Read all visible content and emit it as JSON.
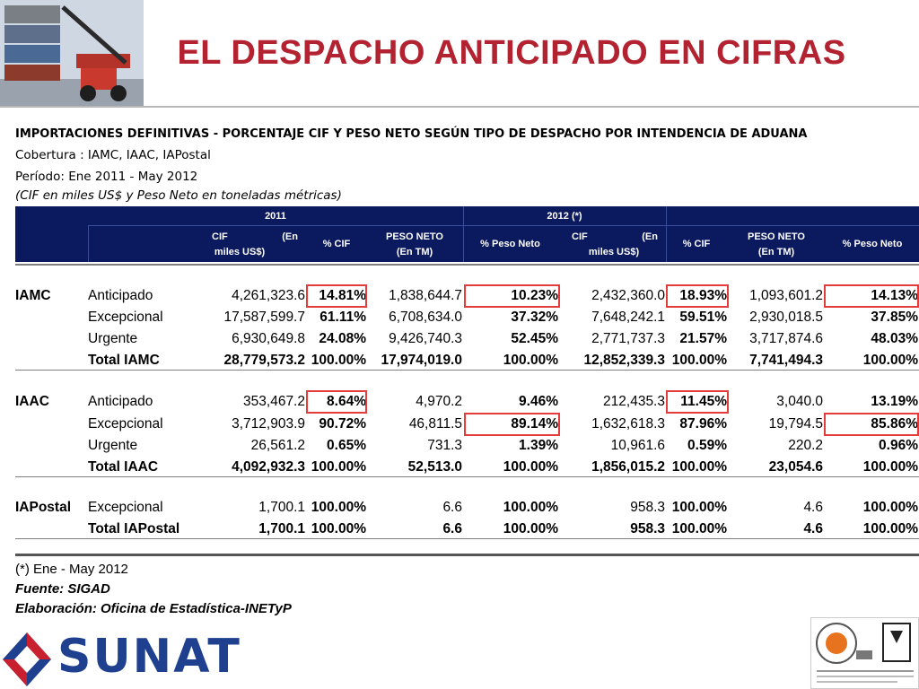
{
  "title": "EL DESPACHO ANTICIPADO EN CIFRAS",
  "intro": {
    "heading": "IMPORTACIONES DEFINITIVAS - PORCENTAJE CIF Y PESO NETO SEGÚN TIPO DE DESPACHO POR INTENDENCIA DE ADUANA",
    "coverage": "Cobertura : IAMC, IAAC, IAPostal",
    "period": "Período: Ene 2011 - May 2012",
    "units": "(CIF en miles US$ y Peso Neto en toneladas métricas)"
  },
  "table": {
    "year_2011": "2011",
    "year_2012": "2012 (*)",
    "columns": [
      "CIF (En miles US$)",
      "% CIF",
      "PESO NETO (En TM)",
      "% Peso Neto",
      "CIF (En miles US$)",
      "% CIF",
      "PESO NETO (En TM)",
      "% Peso Neto"
    ],
    "col_cif_a": "CIF",
    "col_cif_b": "(En",
    "col_cif_c": "miles US$)",
    "col_pct_cif": "% CIF",
    "col_peso_a": "PESO NETO",
    "col_peso_b": "(En TM)",
    "col_pct_peso": "% Peso Neto",
    "groups": [
      {
        "name": "IAMC",
        "rows": [
          {
            "tipo": "Anticipado",
            "v": [
              "4,261,323.6",
              "14.81%",
              "1,838,644.7",
              "10.23%",
              "2,432,360.0",
              "18.93%",
              "1,093,601.2",
              "14.13%"
            ]
          },
          {
            "tipo": "Excepcional",
            "v": [
              "17,587,599.7",
              "61.11%",
              "6,708,634.0",
              "37.32%",
              "7,648,242.1",
              "59.51%",
              "2,930,018.5",
              "37.85%"
            ]
          },
          {
            "tipo": "Urgente",
            "v": [
              "6,930,649.8",
              "24.08%",
              "9,426,740.3",
              "52.45%",
              "2,771,737.3",
              "21.57%",
              "3,717,874.6",
              "48.03%"
            ]
          },
          {
            "tipo": "Total IAMC",
            "v": [
              "28,779,573.2",
              "100.00%",
              "17,974,019.0",
              "100.00%",
              "12,852,339.3",
              "100.00%",
              "7,741,494.3",
              "100.00%"
            ]
          }
        ]
      },
      {
        "name": "IAAC",
        "rows": [
          {
            "tipo": "Anticipado",
            "v": [
              "353,467.2",
              "8.64%",
              "4,970.2",
              "9.46%",
              "212,435.3",
              "11.45%",
              "3,040.0",
              "13.19%"
            ]
          },
          {
            "tipo": "Excepcional",
            "v": [
              "3,712,903.9",
              "90.72%",
              "46,811.5",
              "89.14%",
              "1,632,618.3",
              "87.96%",
              "19,794.5",
              "85.86%"
            ]
          },
          {
            "tipo": "Urgente",
            "v": [
              "26,561.2",
              "0.65%",
              "731.3",
              "1.39%",
              "10,961.6",
              "0.59%",
              "220.2",
              "0.96%"
            ]
          },
          {
            "tipo": "Total IAAC",
            "v": [
              "4,092,932.3",
              "100.00%",
              "52,513.0",
              "100.00%",
              "1,856,015.2",
              "100.00%",
              "23,054.6",
              "100.00%"
            ]
          }
        ]
      },
      {
        "name": "IAPostal",
        "rows": [
          {
            "tipo": "Excepcional",
            "v": [
              "1,700.1",
              "100.00%",
              "6.6",
              "100.00%",
              "958.3",
              "100.00%",
              "4.6",
              "100.00%"
            ]
          },
          {
            "tipo": "Total IAPostal",
            "v": [
              "1,700.1",
              "100.00%",
              "6.6",
              "100.00%",
              "958.3",
              "100.00%",
              "4.6",
              "100.00%"
            ]
          }
        ]
      }
    ]
  },
  "footer": {
    "note": "(*) Ene - May 2012",
    "source": "Fuente: SIGAD",
    "prepared": "Elaboración: Oficina de Estadística-INETyP"
  },
  "logo_text": "SUNAT",
  "colors": {
    "title": "#b32230",
    "header_bg": "#0b1a5e",
    "highlight": "#e53b3b",
    "logo_blue": "#1f3f8f",
    "logo_red": "#c8202f"
  }
}
